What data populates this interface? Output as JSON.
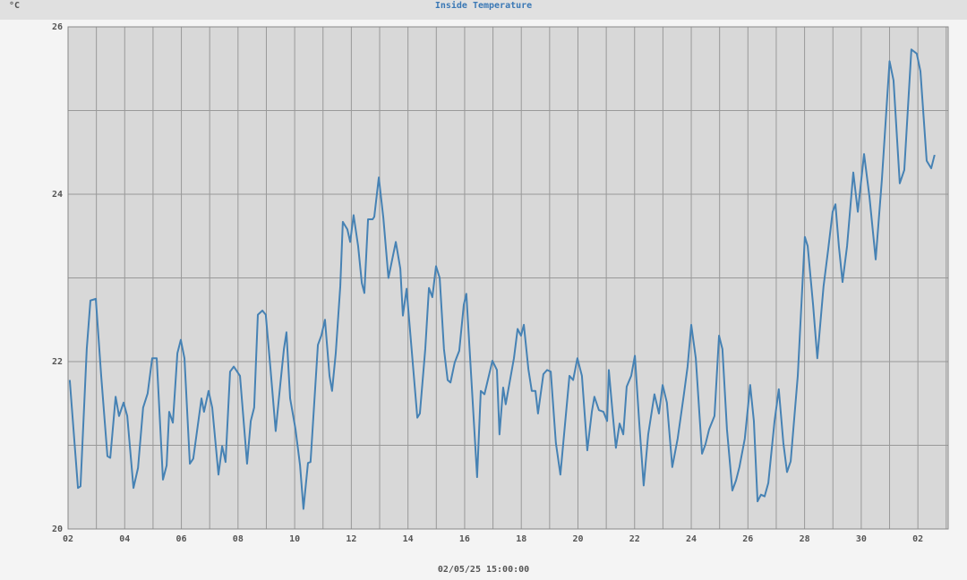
{
  "chart_data": {
    "type": "line",
    "title": "Inside Temperature",
    "ylabel": "°C",
    "timestamp": "02/05/25 15:00:00",
    "ylim": [
      20,
      26
    ],
    "yticks": [
      20,
      22,
      24,
      26
    ],
    "minor_yticks": [
      21,
      23,
      25
    ],
    "xlim": [
      0,
      31.07
    ],
    "xticks": [
      {
        "value": 0,
        "label": "02"
      },
      {
        "value": 2,
        "label": "04"
      },
      {
        "value": 4,
        "label": "06"
      },
      {
        "value": 6,
        "label": "08"
      },
      {
        "value": 8,
        "label": "10"
      },
      {
        "value": 10,
        "label": "12"
      },
      {
        "value": 12,
        "label": "14"
      },
      {
        "value": 14,
        "label": "16"
      },
      {
        "value": 16,
        "label": "18"
      },
      {
        "value": 18,
        "label": "20"
      },
      {
        "value": 20,
        "label": "22"
      },
      {
        "value": 22,
        "label": "24"
      },
      {
        "value": 24,
        "label": "26"
      },
      {
        "value": 26,
        "label": "28"
      },
      {
        "value": 28,
        "label": "30"
      },
      {
        "value": 30,
        "label": "02"
      }
    ],
    "minor_xticks": [
      1,
      3,
      5,
      7,
      9,
      11,
      13,
      15,
      17,
      19,
      21,
      23,
      25,
      27,
      29,
      31
    ],
    "grid": true,
    "series": [
      {
        "color": "#4682b4",
        "x": [
          0.06,
          0.35,
          0.44,
          0.66,
          0.79,
          0.98,
          1.17,
          1.39,
          1.49,
          1.68,
          1.8,
          1.96,
          2.09,
          2.31,
          2.47,
          2.65,
          2.81,
          2.97,
          3.13,
          3.35,
          3.48,
          3.57,
          3.7,
          3.86,
          3.98,
          4.11,
          4.3,
          4.42,
          4.71,
          4.8,
          4.96,
          5.09,
          5.31,
          5.44,
          5.56,
          5.72,
          5.85,
          6.07,
          6.32,
          6.45,
          6.57,
          6.7,
          6.86,
          6.98,
          7.14,
          7.33,
          7.49,
          7.62,
          7.71,
          7.84,
          8.03,
          8.19,
          8.31,
          8.47,
          8.56,
          8.82,
          8.94,
          9.07,
          9.23,
          9.32,
          9.45,
          9.61,
          9.7,
          9.86,
          9.96,
          10.08,
          10.24,
          10.37,
          10.46,
          10.59,
          10.75,
          10.81,
          10.97,
          11.13,
          11.31,
          11.57,
          11.73,
          11.82,
          11.95,
          12.14,
          12.33,
          12.42,
          12.61,
          12.74,
          12.86,
          12.99,
          13.12,
          13.27,
          13.4,
          13.5,
          13.65,
          13.81,
          13.97,
          14.06,
          14.25,
          14.44,
          14.57,
          14.7,
          14.98,
          15.14,
          15.23,
          15.36,
          15.45,
          15.74,
          15.87,
          15.99,
          16.09,
          16.25,
          16.37,
          16.5,
          16.59,
          16.78,
          16.91,
          17.04,
          17.22,
          17.38,
          17.7,
          17.83,
          17.98,
          18.14,
          18.33,
          18.49,
          18.58,
          18.74,
          18.9,
          19.03,
          19.09,
          19.22,
          19.34,
          19.47,
          19.6,
          19.72,
          19.88,
          20.01,
          20.16,
          20.32,
          20.48,
          20.7,
          20.86,
          20.99,
          21.14,
          21.33,
          21.52,
          21.74,
          21.87,
          22.0,
          22.16,
          22.38,
          22.5,
          22.63,
          22.82,
          22.98,
          23.1,
          23.26,
          23.45,
          23.58,
          23.7,
          23.89,
          24.08,
          24.21,
          24.34,
          24.46,
          24.59,
          24.72,
          24.94,
          25.09,
          25.25,
          25.38,
          25.51,
          25.76,
          26.01,
          26.11,
          26.3,
          26.45,
          26.67,
          26.83,
          26.99,
          27.09,
          27.21,
          27.34,
          27.5,
          27.72,
          27.88,
          28.1,
          28.29,
          28.51,
          28.73,
          29.0,
          29.14,
          29.36,
          29.52,
          29.77,
          29.96,
          30.09,
          30.31,
          30.47,
          30.59
        ],
        "values": [
          21.78,
          20.49,
          20.51,
          22.15,
          22.73,
          22.75,
          21.83,
          20.87,
          20.85,
          21.58,
          21.35,
          21.51,
          21.35,
          20.49,
          20.73,
          21.45,
          21.62,
          22.04,
          22.04,
          20.59,
          20.76,
          21.4,
          21.27,
          22.1,
          22.26,
          22.04,
          20.78,
          20.84,
          21.56,
          21.4,
          21.65,
          21.45,
          20.65,
          20.99,
          20.8,
          21.88,
          21.94,
          21.83,
          20.78,
          21.29,
          21.45,
          22.56,
          22.61,
          22.56,
          21.94,
          21.17,
          21.72,
          22.15,
          22.35,
          21.56,
          21.19,
          20.76,
          20.24,
          20.79,
          20.8,
          22.2,
          22.31,
          22.5,
          21.83,
          21.65,
          22.1,
          22.9,
          23.67,
          23.58,
          23.43,
          23.75,
          23.38,
          22.94,
          22.82,
          23.7,
          23.7,
          23.73,
          24.2,
          23.72,
          23.0,
          23.43,
          23.11,
          22.55,
          22.87,
          22.1,
          21.33,
          21.38,
          22.15,
          22.88,
          22.77,
          23.14,
          23.0,
          22.15,
          21.78,
          21.75,
          21.99,
          22.13,
          22.68,
          22.81,
          21.72,
          20.62,
          21.65,
          21.61,
          22.01,
          21.9,
          21.13,
          21.69,
          21.49,
          22.04,
          22.39,
          22.31,
          22.44,
          21.91,
          21.65,
          21.65,
          21.38,
          21.85,
          21.9,
          21.88,
          21.03,
          20.65,
          21.83,
          21.78,
          22.04,
          21.83,
          20.94,
          21.4,
          21.58,
          21.42,
          21.4,
          21.29,
          21.9,
          21.4,
          20.97,
          21.26,
          21.13,
          21.7,
          21.83,
          22.07,
          21.29,
          20.52,
          21.13,
          21.61,
          21.38,
          21.72,
          21.51,
          20.74,
          21.08,
          21.61,
          21.94,
          22.44,
          22.04,
          20.9,
          21.01,
          21.19,
          21.35,
          22.31,
          22.15,
          21.19,
          20.46,
          20.58,
          20.74,
          21.08,
          21.72,
          21.29,
          20.33,
          20.41,
          20.39,
          20.55,
          21.29,
          21.67,
          21.03,
          20.68,
          20.81,
          21.83,
          23.49,
          23.38,
          22.68,
          22.04,
          22.9,
          23.33,
          23.79,
          23.88,
          23.38,
          22.95,
          23.38,
          24.26,
          23.79,
          24.48,
          23.97,
          23.22,
          24.18,
          25.59,
          25.36,
          24.13,
          24.29,
          25.73,
          25.68,
          25.47,
          24.4,
          24.31,
          24.47
        ]
      }
    ]
  }
}
